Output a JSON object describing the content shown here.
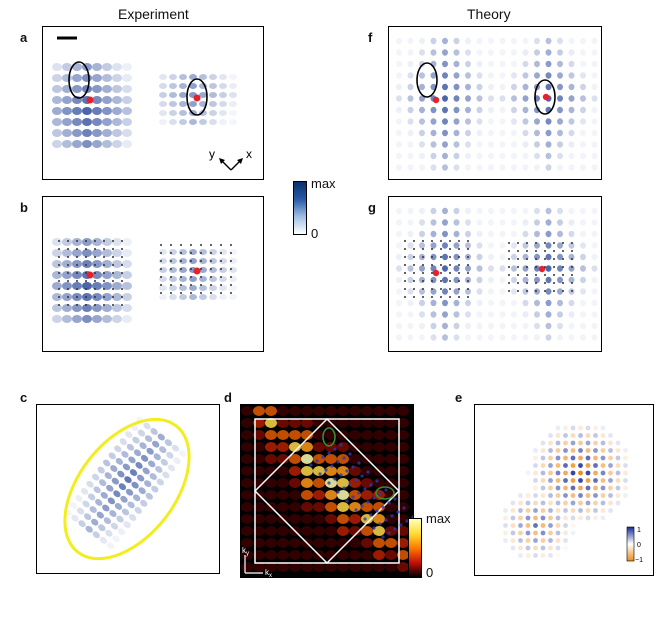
{
  "headers": {
    "experiment": "Experiment",
    "theory": "Theory"
  },
  "panels": {
    "a": "a",
    "b": "b",
    "c": "c",
    "d": "d",
    "e": "e",
    "f": "f",
    "g": "g"
  },
  "axes_a": {
    "y": "y",
    "x": "x"
  },
  "colorbar_main": {
    "max": "max",
    "min": "0",
    "top_color": "#08306b",
    "bottom_color": "#ffffff"
  },
  "colorbar_d": {
    "max": "max",
    "min": "0",
    "top_color": "#ffff99",
    "bottom_color": "#000000"
  },
  "axes_d": {
    "ky": "k",
    "ky_sub": "y",
    "kx": "k",
    "kx_sub": "x"
  },
  "colorbar_e": {
    "max": "1",
    "mid": "0",
    "min": "−1",
    "top_color": "#1a2a9c",
    "bottom_color": "#f08c1a"
  },
  "colors": {
    "marker_red": "#e8202a",
    "ellipse_yellow": "#f2ee1e",
    "ellipse_green": "#3a8a3a",
    "pattern_blue": "#1f3f95"
  }
}
